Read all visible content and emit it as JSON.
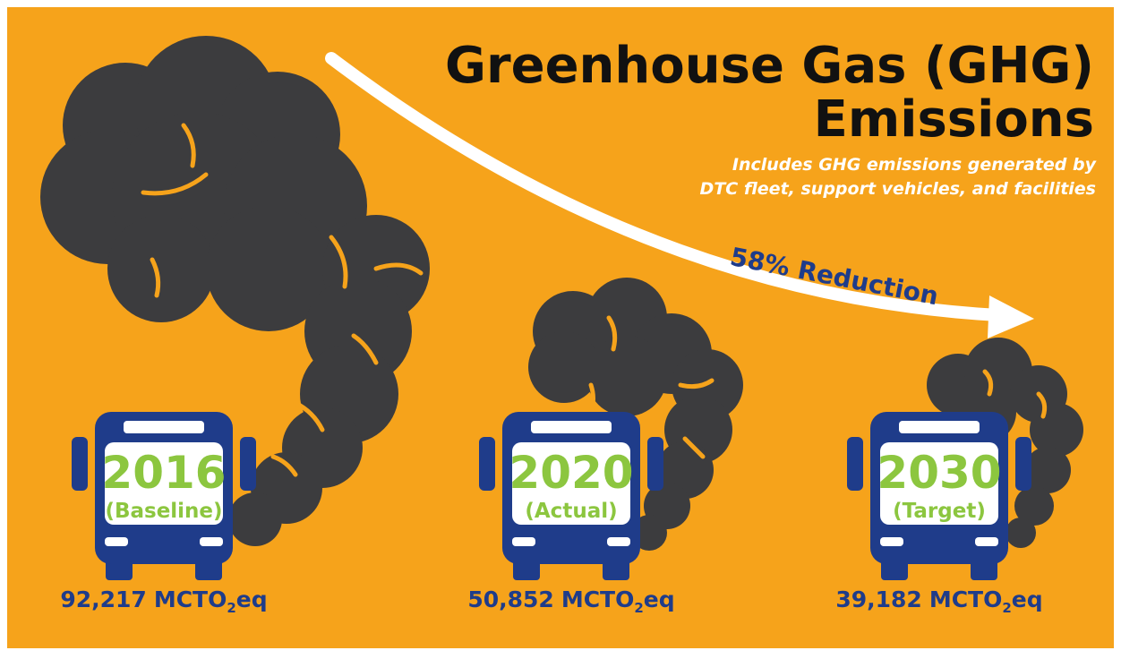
{
  "header": {
    "title_lines": [
      "Greenhouse Gas (GHG)",
      "Emissions"
    ],
    "subtitle_lines": [
      "Includes GHG emissions generated by",
      "DTC fleet, support vehicles, and facilities"
    ]
  },
  "annotation": "58% Reduction",
  "unit": {
    "main": "MCTO",
    "sub": "2",
    "end": "eq"
  },
  "items": [
    {
      "year": "2016",
      "label": "(Baseline)",
      "value": "92,217"
    },
    {
      "year": "2020",
      "label": "(Actual)",
      "value": "50,852"
    },
    {
      "year": "2030",
      "label": "(Target)",
      "value": "39,182"
    }
  ]
}
